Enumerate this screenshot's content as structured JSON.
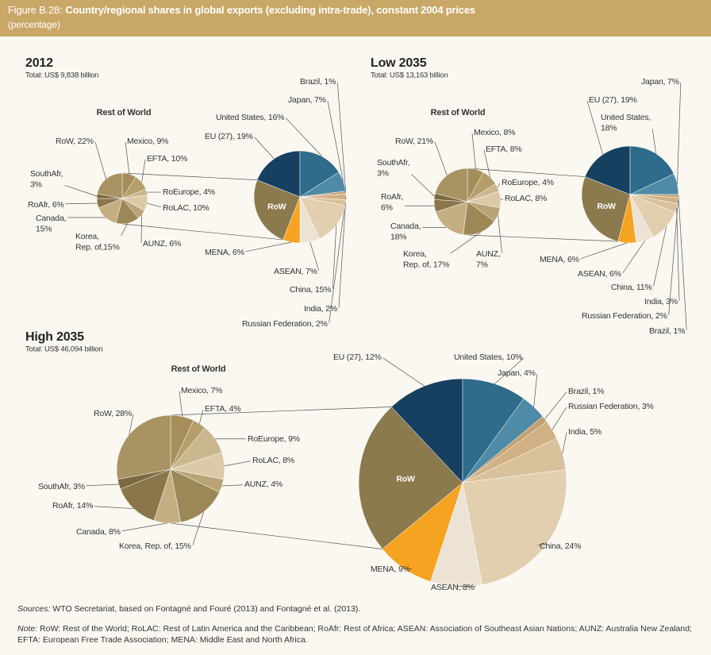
{
  "figure_label": "Figure B.28:",
  "title": "Country/regional shares in global exports (excluding intra-trade), constant 2004 prices",
  "subtitle": "(percentage)",
  "sources_label": "Sources:",
  "sources": "WTO Secretariat, based on Fontagné and Fouré (2013) and Fontagné et al. (2013).",
  "note_label": "Note:",
  "note": "RoW: Rest of the World; RoLAC: Rest of Latin America and the Caribbean; RoAfr: Rest of Africa; ASEAN: Association of Southeast Asian Nations; AUNZ: Australia New Zealand; EFTA: European Free Trade Association; MENA: Middle East and North Africa.",
  "chart_data": [
    {
      "type": "pie",
      "title": "2012",
      "subtitle": "Total: US$ 9,838 billion",
      "other": {
        "label": "RoW",
        "value": 25,
        "color": "#8b7a4e"
      },
      "value_labels": [
        "EU (27), 19%",
        "United States, 16%",
        "Japan, 7%",
        "Brazil, 1%",
        "Russian Federation, 2%",
        "India, 2%",
        "China, 15%",
        "ASEAN, 7%",
        "MENA, 6%"
      ],
      "values": [
        19,
        16,
        7,
        1,
        2,
        2,
        15,
        7,
        6
      ],
      "colors": [
        "#173f5f",
        "#2f6b8a",
        "#4f8aa6",
        "#c4a172",
        "#d0b185",
        "#d9c19c",
        "#e2cfb0",
        "#ece3d4",
        "#f5a320"
      ],
      "detail": {
        "title": "Rest of World",
        "value_labels": [
          "Mexico, 9%",
          "EFTA, 10%",
          "RoEurope, 4%",
          "RoLAC, 10%",
          "AUNZ, 6%",
          "Korea,\nRep. of,15%",
          "Canada,\n15%",
          "RoAfr, 6%",
          "SouthAfr,\n3%",
          "RoW, 22%"
        ],
        "values": [
          9,
          10,
          4,
          10,
          6,
          15,
          15,
          6,
          3,
          22
        ],
        "colors": [
          "#a58e5a",
          "#b59e6c",
          "#cbb78e",
          "#dacaa8",
          "#b9a476",
          "#9c8757",
          "#c4ae82",
          "#8a7649",
          "#7c6941",
          "#a99363"
        ]
      }
    },
    {
      "type": "pie",
      "title": "Low 2035",
      "subtitle": "Total: US$ 13,163 billion",
      "other": {
        "label": "RoW",
        "value": 27,
        "color": "#8b7a4e"
      },
      "value_labels": [
        "EU (27), 19%",
        "United States,\n18%",
        "Japan, 7%",
        "Brazil, 1%",
        "Russian Federation, 2%",
        "India, 3%",
        "China, 11%",
        "ASEAN, 6%",
        "MENA, 6%"
      ],
      "values": [
        19,
        18,
        7,
        1,
        2,
        3,
        11,
        6,
        6
      ],
      "colors": [
        "#173f5f",
        "#2f6b8a",
        "#4f8aa6",
        "#c4a172",
        "#d0b185",
        "#d9c19c",
        "#e2cfb0",
        "#ece3d4",
        "#f5a320"
      ],
      "detail": {
        "title": "Rest of World",
        "value_labels": [
          "Mexico, 8%",
          "EFTA, 8%",
          "RoEurope, 4%",
          "RoLAC, 8%",
          "AUNZ,\n7%",
          "Korea,\nRep. of, 17%",
          "Canada,\n18%",
          "RoAfr,\n6%",
          "SouthAfr,\n3%",
          "RoW, 21%"
        ],
        "values": [
          8,
          8,
          4,
          8,
          7,
          17,
          18,
          6,
          3,
          21
        ],
        "colors": [
          "#a58e5a",
          "#b59e6c",
          "#cbb78e",
          "#dacaa8",
          "#b9a476",
          "#9c8757",
          "#c4ae82",
          "#8a7649",
          "#7c6941",
          "#a99363"
        ]
      }
    },
    {
      "type": "pie",
      "title": "High 2035",
      "subtitle": "Total: US$ 46,094 billion",
      "other": {
        "label": "RoW",
        "value": 24,
        "color": "#8b7a4e"
      },
      "value_labels": [
        "EU (27), 12%",
        "United States, 10%",
        "Japan, 4%",
        "Brazil, 1%",
        "Russian Federation, 3%",
        "India, 5%",
        "China, 24%",
        "ASEAN, 8%",
        "MENA, 9%"
      ],
      "values": [
        12,
        10,
        4,
        1,
        3,
        5,
        24,
        8,
        9
      ],
      "colors": [
        "#173f5f",
        "#2f6b8a",
        "#4f8aa6",
        "#c4a172",
        "#d0b185",
        "#d9c19c",
        "#e2cfb0",
        "#ece3d4",
        "#f5a320"
      ],
      "detail": {
        "title": "Rest of World",
        "value_labels": [
          "Mexico, 7%",
          "EFTA, 4%",
          "RoEurope, 9%",
          "RoLAC, 8%",
          "AUNZ, 4%",
          "Korea, Rep. of, 15%",
          "Canada, 8%",
          "RoAfr, 14%",
          "SouthAfr, 3%",
          "RoW, 28%"
        ],
        "values": [
          7,
          4,
          9,
          8,
          4,
          15,
          8,
          14,
          3,
          28
        ],
        "colors": [
          "#a58e5a",
          "#b59e6c",
          "#cbb78e",
          "#dacaa8",
          "#b9a476",
          "#9c8757",
          "#c4ae82",
          "#8a7649",
          "#7c6941",
          "#a99363"
        ]
      }
    }
  ]
}
